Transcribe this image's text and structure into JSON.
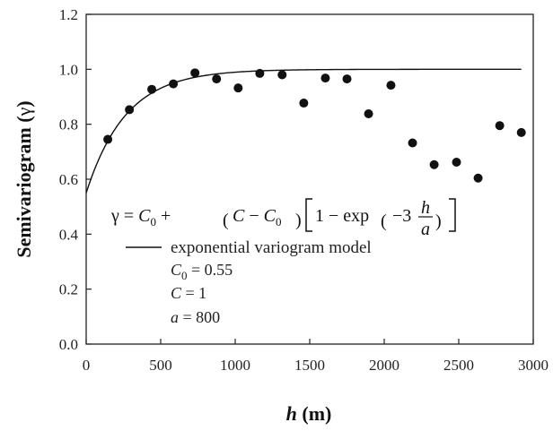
{
  "chart_data": {
    "type": "scatter",
    "xlabel_main": "h",
    "xlabel_unit": " (m)",
    "ylabel_main": "Semivariogram (",
    "ylabel_symbol": "γ",
    "ylabel_close": ")",
    "xlim": [
      0,
      3000
    ],
    "ylim": [
      0,
      1.2
    ],
    "xticks": [
      0,
      500,
      1000,
      1500,
      2000,
      2500,
      3000
    ],
    "yticks": [
      0.0,
      0.2,
      0.4,
      0.6,
      0.8,
      1.0,
      1.2
    ],
    "ytick_labels": [
      "0.0",
      "0.2",
      "0.4",
      "0.6",
      "0.8",
      "1.0",
      "1.2"
    ],
    "grid": false,
    "series": [
      {
        "kind": "points",
        "x": [
          145,
          290,
          440,
          585,
          730,
          875,
          1020,
          1165,
          1315,
          1460,
          1605,
          1750,
          1895,
          2045,
          2190,
          2335,
          2485,
          2630,
          2775,
          2920
        ],
        "y": [
          0.745,
          0.853,
          0.927,
          0.947,
          0.987,
          0.965,
          0.932,
          0.985,
          0.98,
          0.877,
          0.968,
          0.965,
          0.838,
          0.942,
          0.732,
          0.653,
          0.662,
          0.604,
          0.795,
          0.77
        ]
      },
      {
        "kind": "line",
        "name": "exponential variogram model",
        "model": "exponential",
        "c0": 0.55,
        "c": 1,
        "a": 800,
        "x_range": [
          0,
          2920
        ]
      }
    ],
    "legend": {
      "placement": "lower-left",
      "label": "exponential variogram model"
    },
    "parameters": [
      {
        "italic": "C",
        "sub": "0",
        "rest": " = 0.55"
      },
      {
        "italic": "C",
        "sub": "",
        "rest": " = 1"
      },
      {
        "italic": "a",
        "sub": "",
        "rest": " = 800"
      }
    ],
    "equation": {
      "gamma": "γ",
      "eq": " = ",
      "c": "C",
      "sub0": "0",
      "plus": " + ",
      "lparen": "(",
      "minus": " − ",
      "rparen": ")",
      "lbracket": "[",
      "one": "1",
      "exp": "exp",
      "neg3": "−3",
      "h": "h",
      "a": "a",
      "rbracket": "]"
    }
  }
}
